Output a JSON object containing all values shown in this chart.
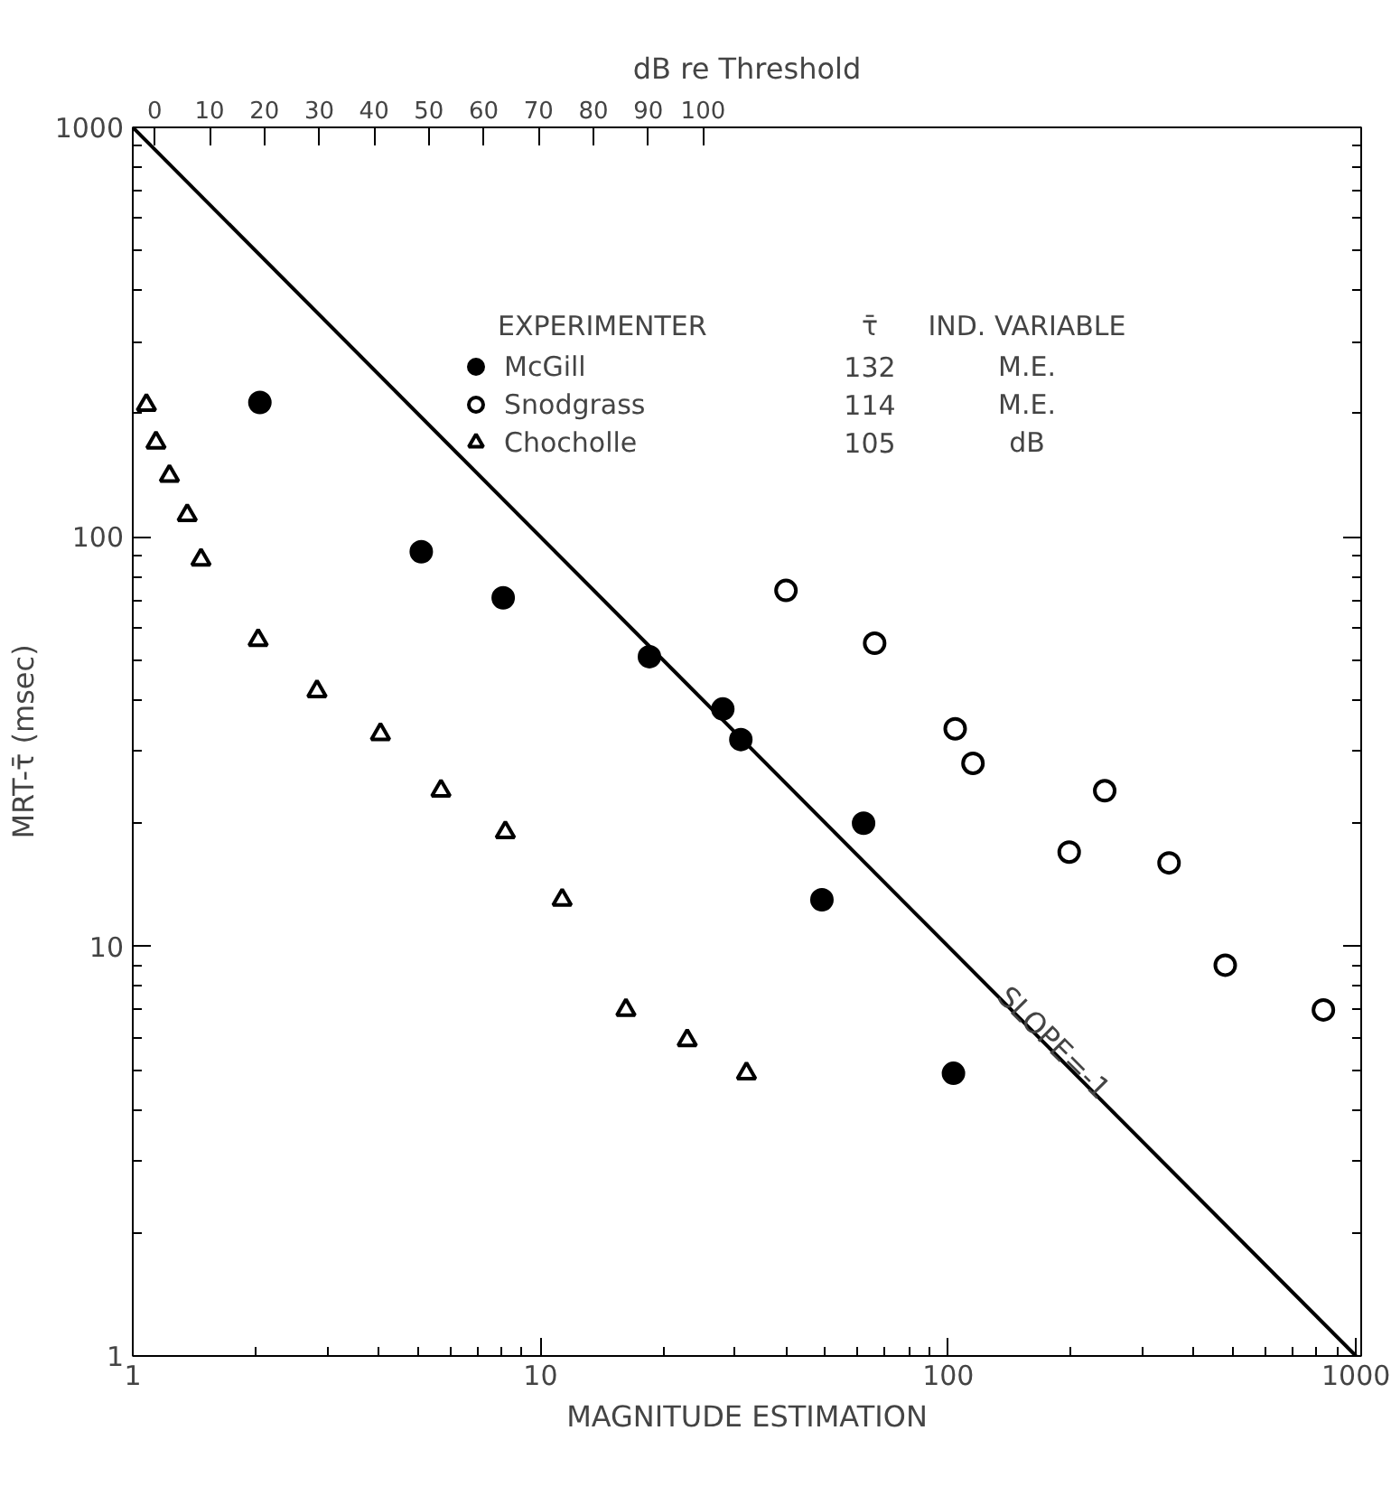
{
  "chart_data": {
    "type": "scatter",
    "xlabel": "MAGNITUDE ESTIMATION",
    "ylabel": "MRT-τ̄ (msec)",
    "x2label": "dB re Threshold",
    "legend_title": "EXPERIMENTER",
    "log": "xy",
    "grid": false,
    "legend": "top",
    "xlim": [
      1,
      1030
    ],
    "ylim": [
      1,
      1000
    ],
    "xticks": [
      1,
      {
        "value": 2,
        "label": null
      },
      {
        "value": 3,
        "label": null
      },
      {
        "value": 4,
        "label": null
      },
      {
        "value": 5,
        "label": null
      },
      {
        "value": 6,
        "label": null
      },
      {
        "value": 7,
        "label": null
      },
      {
        "value": 8,
        "label": null
      },
      {
        "value": 9,
        "label": null
      },
      10,
      {
        "value": 20,
        "label": null
      },
      {
        "value": 30,
        "label": null
      },
      {
        "value": 40,
        "label": null
      },
      {
        "value": 50,
        "label": null
      },
      {
        "value": 60,
        "label": null
      },
      {
        "value": 70,
        "label": null
      },
      {
        "value": 80,
        "label": null
      },
      {
        "value": 90,
        "label": null
      },
      100,
      {
        "value": 200,
        "label": null
      },
      {
        "value": 300,
        "label": null
      },
      {
        "value": 400,
        "label": null
      },
      {
        "value": 500,
        "label": null
      },
      {
        "value": 600,
        "label": null
      },
      {
        "value": 700,
        "label": null
      },
      {
        "value": 800,
        "label": null
      },
      {
        "value": 900,
        "label": null
      },
      1000
    ],
    "yticks": [
      1,
      {
        "value": 2,
        "label": null
      },
      {
        "value": 3,
        "label": null
      },
      {
        "value": 4,
        "label": null
      },
      {
        "value": 5,
        "label": null
      },
      {
        "value": 6,
        "label": null
      },
      {
        "value": 7,
        "label": null
      },
      {
        "value": 8,
        "label": null
      },
      {
        "value": 9,
        "label": null
      },
      10,
      {
        "value": 20,
        "label": null
      },
      {
        "value": 30,
        "label": null
      },
      {
        "value": 40,
        "label": null
      },
      {
        "value": 50,
        "label": null
      },
      {
        "value": 60,
        "label": null
      },
      {
        "value": 70,
        "label": null
      },
      {
        "value": 80,
        "label": null
      },
      {
        "value": 90,
        "label": null
      },
      100,
      {
        "value": 200,
        "label": null
      },
      {
        "value": 300,
        "label": null
      },
      {
        "value": 400,
        "label": null
      },
      {
        "value": 500,
        "label": null
      },
      {
        "value": 600,
        "label": null
      },
      {
        "value": 700,
        "label": null
      },
      {
        "value": 800,
        "label": null
      },
      {
        "value": 900,
        "label": null
      },
      1000
    ],
    "x2lim": [
      -4,
      220
    ],
    "x2ticks": [
      0,
      10,
      20,
      30,
      40,
      50,
      60,
      70,
      80,
      90,
      100
    ],
    "series": [
      {
        "name": "McGill",
        "marker": "circle",
        "color": "#000000",
        "x": [
          2.05,
          5.1,
          8.1,
          18.5,
          28,
          31,
          49,
          62,
          103
        ],
        "values": [
          213,
          92,
          71,
          51,
          38,
          32,
          13,
          20,
          4.9
        ]
      },
      {
        "name": "Snodgrass",
        "marker": "circle_open",
        "color": "#000000",
        "x": [
          40,
          66,
          104,
          115,
          198,
          242,
          348,
          478,
          832
        ],
        "values": [
          74,
          55,
          34,
          28,
          17,
          24,
          16,
          9,
          7
        ]
      },
      {
        "name": "Chocholle",
        "marker": "triangle_open",
        "color": "#000000",
        "x": [
          1.08,
          1.14,
          1.23,
          1.36,
          1.47,
          2.03,
          2.83,
          4.05,
          5.7,
          8.2,
          11.3,
          16.2,
          22.9,
          32
        ],
        "values": [
          210,
          170,
          141,
          113,
          88,
          56,
          42,
          33,
          24,
          19,
          13,
          7,
          5.9,
          4.9
        ]
      },
      {
        "type": "line",
        "marker": "none",
        "line_style": "solid",
        "color": "#000000",
        "x": [
          1,
          1000
        ],
        "values": [
          1000,
          1
        ]
      }
    ],
    "annotations": [
      "τ̄",
      "132",
      "114",
      "105",
      "IND. VARIABLE",
      "M.E.",
      "M.E.",
      "dB",
      "SLOPE=-1"
    ]
  }
}
